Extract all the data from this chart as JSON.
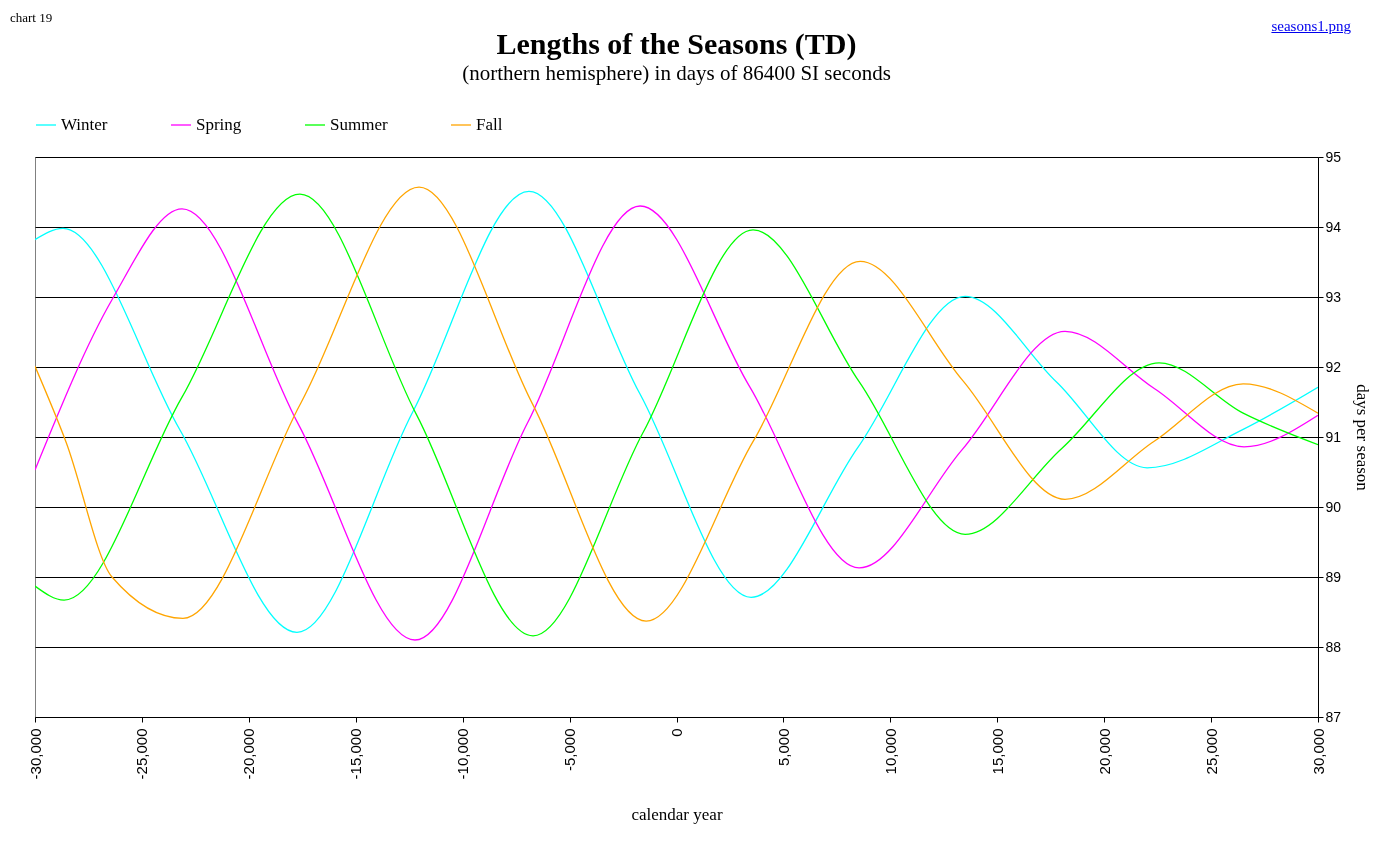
{
  "chart_data": {
    "type": "line",
    "title": "Lengths of the Seasons (TD)",
    "subtitle": "(northern hemisphere)  in days of 86400 SI seconds",
    "xlabel": "calendar year",
    "ylabel": "days per season",
    "annotations": [
      "chart 19",
      "seasons1.png"
    ],
    "series": [
      {
        "name": "Winter",
        "color": "#00ffff",
        "x": [
          -30000,
          -28690,
          -23220,
          -17750,
          -12330,
          -6900,
          -1700,
          3490,
          8500,
          13500,
          17760,
          22010,
          26500,
          30000
        ],
        "values": [
          93.82,
          93.98,
          91.1,
          88.21,
          91.36,
          94.51,
          91.61,
          88.71,
          90.86,
          93.01,
          91.79,
          90.56,
          91.11,
          91.71
        ]
      },
      {
        "name": "Spring",
        "color": "#ff00ff",
        "x": [
          -30000,
          -26400,
          -23125,
          -17680,
          -12230,
          -6970,
          -1700,
          3420,
          8540,
          13360,
          18170,
          22360,
          26540,
          30000
        ],
        "values": [
          90.53,
          92.96,
          94.26,
          91.18,
          88.1,
          91.2,
          94.3,
          91.72,
          89.13,
          90.82,
          92.51,
          91.69,
          90.86,
          91.31
        ]
      },
      {
        "name": "Summer",
        "color": "#00ff00",
        "x": [
          -30000,
          -28640,
          -23125,
          -17610,
          -12160,
          -6710,
          -1570,
          3580,
          8540,
          13500,
          18030,
          22570,
          26500,
          30000
        ],
        "values": [
          88.87,
          88.67,
          91.57,
          94.47,
          91.32,
          88.16,
          91.06,
          93.96,
          91.79,
          89.61,
          90.84,
          92.06,
          91.34,
          90.89
        ]
      },
      {
        "name": "Fall",
        "color": "#ffa500",
        "x": [
          -30000,
          -28550,
          -26400,
          -23080,
          -17560,
          -12040,
          -6730,
          -1420,
          3590,
          8590,
          13380,
          18170,
          22340,
          26500,
          30000
        ],
        "values": [
          92.01,
          90.93,
          89.0,
          88.41,
          91.49,
          94.57,
          91.47,
          88.37,
          90.94,
          93.51,
          91.81,
          90.11,
          90.94,
          91.76,
          91.34
        ]
      }
    ],
    "xlim": [
      -30000,
      30000
    ],
    "xticks": [
      {
        "value": -30000,
        "label": "-30,000"
      },
      {
        "value": -25000,
        "label": "-25,000"
      },
      {
        "value": -20000,
        "label": "-20,000"
      },
      {
        "value": -15000,
        "label": "-15,000"
      },
      {
        "value": -10000,
        "label": "-10,000"
      },
      {
        "value": -5000,
        "label": "-5,000"
      },
      0,
      {
        "value": 5000,
        "label": "5,000"
      },
      {
        "value": 10000,
        "label": "10,000"
      },
      {
        "value": 15000,
        "label": "15,000"
      },
      {
        "value": 20000,
        "label": "20,000"
      },
      {
        "value": 25000,
        "label": "25,000"
      },
      {
        "value": 30000,
        "label": "30,000"
      }
    ],
    "ylim": [
      87,
      95
    ],
    "yticks": [
      87,
      88,
      89,
      90,
      91,
      92,
      93,
      94,
      95
    ],
    "grid": "y",
    "legend": "top",
    "marker": "none",
    "line_style": "solid"
  }
}
